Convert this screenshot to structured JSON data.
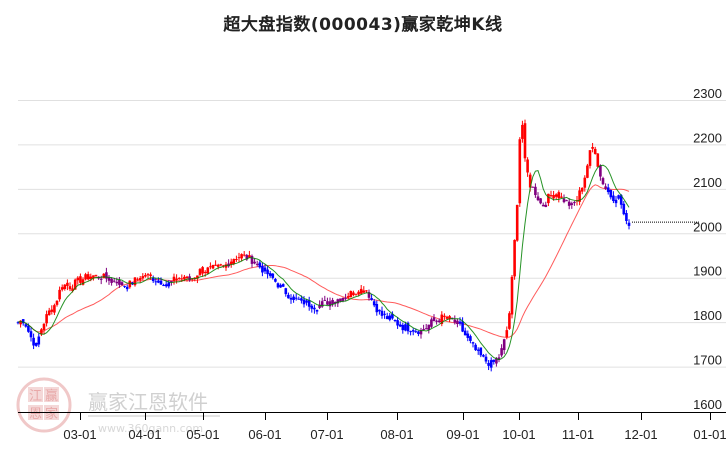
{
  "title": "超大盘指数(000043)赢家乾坤K线",
  "watermark": {
    "brand": "赢家江恩软件",
    "url": "www.360gann.com",
    "seal": [
      "江",
      "赢",
      "恩",
      "家"
    ]
  },
  "colors": {
    "up": "#ff0000",
    "down": "#0000ff",
    "neutral": "#800080",
    "ma_short": "#008000",
    "ma_long": "#ff4040",
    "grid": "#e0e0e0",
    "axis": "#000000"
  },
  "chart_data": {
    "type": "candlestick",
    "title": "超大盘指数(000043)赢家乾坤K线",
    "xlabel": "",
    "ylabel": "",
    "ylim": [
      1600,
      2330
    ],
    "y_ticks": [
      1600,
      1700,
      1800,
      1900,
      2000,
      2100,
      2200,
      2300
    ],
    "x_ticks": [
      "03-01",
      "04-01",
      "05-01",
      "06-01",
      "07-01",
      "08-01",
      "09-01",
      "10-01",
      "11-01",
      "12-01",
      "01-01"
    ],
    "grid": true,
    "legend": "none",
    "last_close_line": 2025,
    "close_waypoints": [
      {
        "x": 18,
        "close": 1800
      },
      {
        "x": 24,
        "close": 1805
      },
      {
        "x": 30,
        "close": 1770
      },
      {
        "x": 36,
        "close": 1745
      },
      {
        "x": 42,
        "close": 1790
      },
      {
        "x": 48,
        "close": 1820
      },
      {
        "x": 55,
        "close": 1840
      },
      {
        "x": 62,
        "close": 1885
      },
      {
        "x": 70,
        "close": 1880
      },
      {
        "x": 80,
        "close": 1895
      },
      {
        "x": 92,
        "close": 1905
      },
      {
        "x": 104,
        "close": 1900
      },
      {
        "x": 116,
        "close": 1895
      },
      {
        "x": 126,
        "close": 1880
      },
      {
        "x": 136,
        "close": 1895
      },
      {
        "x": 146,
        "close": 1905
      },
      {
        "x": 158,
        "close": 1895
      },
      {
        "x": 168,
        "close": 1885
      },
      {
        "x": 178,
        "close": 1900
      },
      {
        "x": 190,
        "close": 1895
      },
      {
        "x": 200,
        "close": 1915
      },
      {
        "x": 212,
        "close": 1920
      },
      {
        "x": 224,
        "close": 1925
      },
      {
        "x": 234,
        "close": 1945
      },
      {
        "x": 242,
        "close": 1950
      },
      {
        "x": 252,
        "close": 1940
      },
      {
        "x": 262,
        "close": 1920
      },
      {
        "x": 272,
        "close": 1900
      },
      {
        "x": 282,
        "close": 1875
      },
      {
        "x": 292,
        "close": 1855
      },
      {
        "x": 304,
        "close": 1845
      },
      {
        "x": 316,
        "close": 1835
      },
      {
        "x": 326,
        "close": 1845
      },
      {
        "x": 336,
        "close": 1850
      },
      {
        "x": 346,
        "close": 1860
      },
      {
        "x": 356,
        "close": 1870
      },
      {
        "x": 366,
        "close": 1875
      },
      {
        "x": 374,
        "close": 1840
      },
      {
        "x": 382,
        "close": 1815
      },
      {
        "x": 392,
        "close": 1805
      },
      {
        "x": 402,
        "close": 1790
      },
      {
        "x": 412,
        "close": 1785
      },
      {
        "x": 422,
        "close": 1780
      },
      {
        "x": 432,
        "close": 1800
      },
      {
        "x": 442,
        "close": 1810
      },
      {
        "x": 452,
        "close": 1805
      },
      {
        "x": 460,
        "close": 1790
      },
      {
        "x": 468,
        "close": 1760
      },
      {
        "x": 476,
        "close": 1735
      },
      {
        "x": 484,
        "close": 1715
      },
      {
        "x": 492,
        "close": 1705
      },
      {
        "x": 500,
        "close": 1725
      },
      {
        "x": 506,
        "close": 1770
      },
      {
        "x": 510,
        "close": 1830
      },
      {
        "x": 514,
        "close": 1960
      },
      {
        "x": 518,
        "close": 2100
      },
      {
        "x": 521,
        "close": 2290
      },
      {
        "x": 525,
        "close": 2160
      },
      {
        "x": 530,
        "close": 2110
      },
      {
        "x": 536,
        "close": 2090
      },
      {
        "x": 542,
        "close": 2060
      },
      {
        "x": 548,
        "close": 2080
      },
      {
        "x": 556,
        "close": 2090
      },
      {
        "x": 564,
        "close": 2075
      },
      {
        "x": 572,
        "close": 2060
      },
      {
        "x": 578,
        "close": 2080
      },
      {
        "x": 584,
        "close": 2120
      },
      {
        "x": 590,
        "close": 2180
      },
      {
        "x": 594,
        "close": 2200
      },
      {
        "x": 600,
        "close": 2130
      },
      {
        "x": 606,
        "close": 2100
      },
      {
        "x": 612,
        "close": 2080
      },
      {
        "x": 618,
        "close": 2085
      },
      {
        "x": 622,
        "close": 2060
      },
      {
        "x": 626,
        "close": 2020
      },
      {
        "x": 630,
        "close": 2025
      }
    ]
  }
}
